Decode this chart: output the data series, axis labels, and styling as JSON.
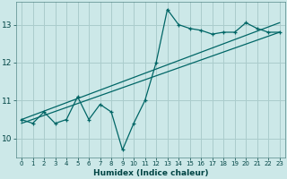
{
  "xlabel": "Humidex (Indice chaleur)",
  "bg_color": "#cce8e8",
  "grid_color": "#aacccc",
  "line_color": "#006666",
  "x_data": [
    0,
    1,
    2,
    3,
    4,
    5,
    6,
    7,
    8,
    9,
    10,
    11,
    12,
    13,
    14,
    15,
    16,
    17,
    18,
    19,
    20,
    21,
    22,
    23
  ],
  "y_main": [
    10.5,
    10.4,
    10.7,
    10.4,
    10.5,
    11.1,
    10.5,
    10.9,
    10.7,
    9.7,
    10.4,
    11.0,
    12.0,
    13.4,
    13.0,
    12.9,
    12.85,
    12.75,
    12.8,
    12.8,
    13.05,
    12.9,
    12.8,
    12.8
  ],
  "ylim": [
    9.5,
    13.6
  ],
  "xlim": [
    -0.5,
    23.5
  ],
  "yticks": [
    10,
    11,
    12,
    13
  ],
  "xticks": [
    0,
    1,
    2,
    3,
    4,
    5,
    6,
    7,
    8,
    9,
    10,
    11,
    12,
    13,
    14,
    15,
    16,
    17,
    18,
    19,
    20,
    21,
    22,
    23
  ],
  "trend1_x": [
    0,
    23
  ],
  "trend1_y": [
    10.5,
    13.05
  ],
  "trend2_x": [
    0,
    23
  ],
  "trend2_y": [
    10.4,
    12.8
  ]
}
